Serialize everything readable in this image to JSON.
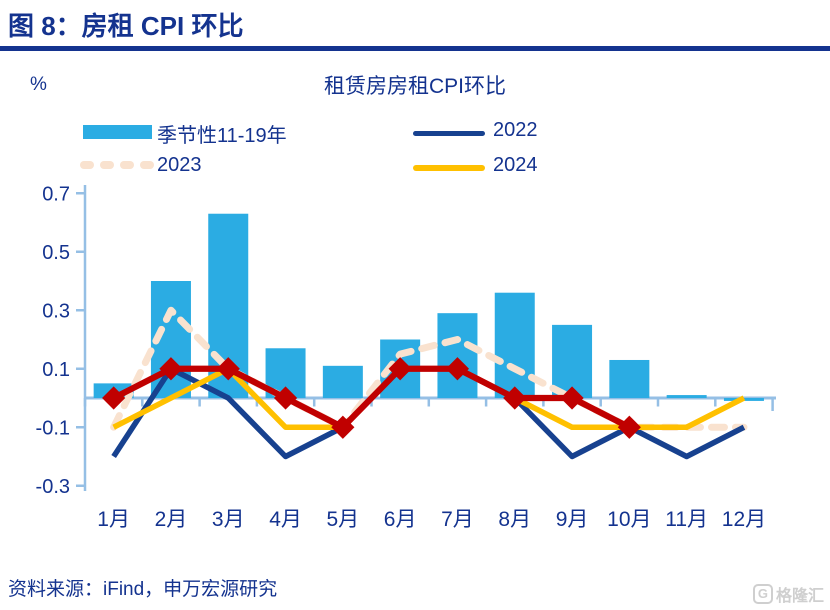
{
  "header": {
    "title": "图 8：房租 CPI 环比"
  },
  "chart": {
    "unit": "%",
    "title": "租赁房房租CPI环比"
  },
  "footer": {
    "source": "资料来源：iFind，申万宏源研究",
    "watermark": "格隆汇",
    "watermark_initial": "G"
  },
  "colors": {
    "navy": "#14338f",
    "bars": "#2bace3",
    "y2022": "#17418f",
    "y2023": "#f9e2cf",
    "y2024": "#ffc000",
    "red": "#c00000",
    "axis": "#95bfe5",
    "wm": "#cfcfcf"
  },
  "chart_data": {
    "type": "bar+line combo",
    "title": "租赁房房租CPI环比",
    "ylabel": "%",
    "ylim": [
      -0.3,
      0.7
    ],
    "yticks": [
      0.7,
      0.5,
      0.3,
      0.1,
      -0.1,
      -0.3
    ],
    "grid": false,
    "legend_position": "top",
    "categories": [
      "1月",
      "2月",
      "3月",
      "4月",
      "5月",
      "6月",
      "7月",
      "8月",
      "9月",
      "10月",
      "11月",
      "12月"
    ],
    "series": [
      {
        "id": "seasonality",
        "name": "季节性11-19年",
        "type": "bar",
        "color": "#2bace3",
        "values": [
          0.05,
          0.4,
          0.63,
          0.17,
          0.11,
          0.2,
          0.29,
          0.36,
          0.25,
          0.13,
          0.01,
          -0.01
        ]
      },
      {
        "id": "y2022",
        "name": "2022",
        "type": "line",
        "color": "#17418f",
        "z": 2,
        "values": [
          -0.2,
          0.1,
          0.0,
          -0.2,
          -0.1,
          0.1,
          0.1,
          0.0,
          -0.2,
          -0.1,
          -0.2,
          -0.1
        ]
      },
      {
        "id": "y2023",
        "name": "2023",
        "type": "line",
        "dash": true,
        "color": "#f9e2cf",
        "z": 1,
        "values": [
          -0.1,
          0.3,
          0.1,
          0.0,
          -0.1,
          0.15,
          0.2,
          0.1,
          0.0,
          -0.1,
          -0.1,
          -0.1
        ]
      },
      {
        "id": "y2024",
        "name": "2024",
        "type": "line",
        "color": "#ffc000",
        "z": 3,
        "values": [
          -0.1,
          0.0,
          0.1,
          -0.1,
          -0.1,
          0.1,
          0.1,
          0.0,
          -0.1,
          -0.1,
          -0.1,
          0.0
        ]
      },
      {
        "id": "red-diamond",
        "name": "",
        "type": "line",
        "marker": "diamond",
        "color": "#c00000",
        "z": 4,
        "values": [
          0.0,
          0.1,
          0.1,
          0.0,
          -0.1,
          0.1,
          0.1,
          0.0,
          0.0,
          -0.1,
          null,
          null
        ]
      }
    ]
  }
}
